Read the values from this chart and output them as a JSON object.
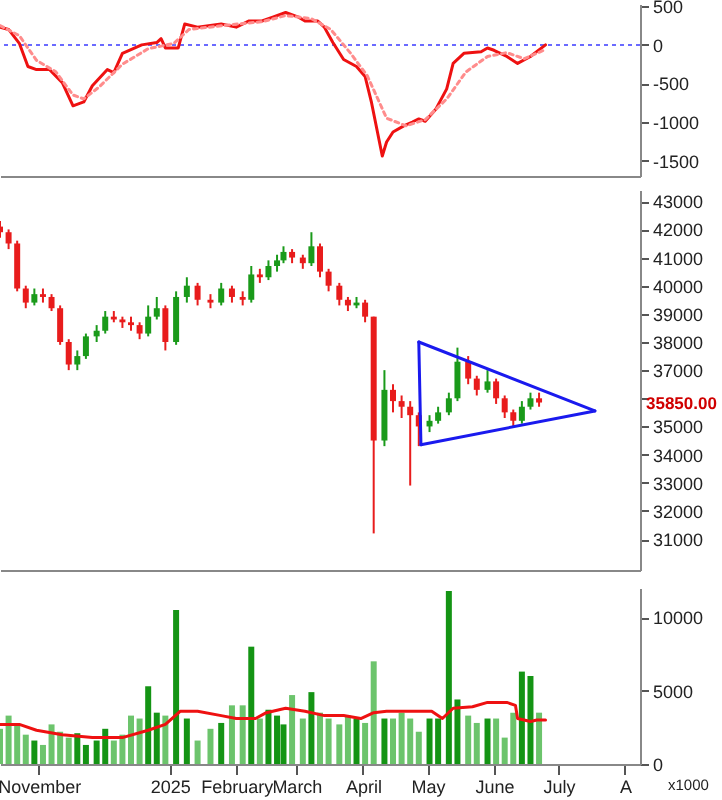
{
  "chart_data": [
    {
      "type": "line",
      "xlim": [
        "2024-10-14",
        "2025-08-08"
      ],
      "ylim": [
        -1700,
        530
      ],
      "yticks": [
        500,
        0,
        -500,
        -1000,
        -1500
      ],
      "tick_labels": "y",
      "series": [
        {
          "color": "#ee1111",
          "x": [
            "2024-10-14",
            "2024-10-18",
            "2024-10-23",
            "2024-10-27",
            "2024-10-31",
            "2024-11-06",
            "2024-11-12",
            "2024-11-17",
            "2024-11-22",
            "2024-11-26",
            "2024-12-03",
            "2024-12-06",
            "2024-12-10",
            "2024-12-19",
            "2024-12-26",
            "2024-12-28",
            "2024-12-30",
            "2025-01-05",
            "2025-01-08",
            "2025-01-14",
            "2025-01-25",
            "2025-02-01",
            "2025-02-07",
            "2025-02-13",
            "2025-02-18",
            "2025-02-24",
            "2025-03-02",
            "2025-03-05",
            "2025-03-11",
            "2025-03-14",
            "2025-03-18",
            "2025-03-23",
            "2025-03-29",
            "2025-04-02",
            "2025-04-05",
            "2025-04-10",
            "2025-04-12",
            "2025-04-15",
            "2025-04-20",
            "2025-04-24",
            "2025-04-27",
            "2025-04-30",
            "2025-05-05",
            "2025-05-10",
            "2025-05-13",
            "2025-05-18",
            "2025-05-26",
            "2025-05-29",
            "2025-06-01",
            "2025-06-07",
            "2025-06-12",
            "2025-06-18",
            "2025-06-25"
          ],
          "values": [
            230,
            200,
            20,
            -280,
            -320,
            -320,
            -490,
            -790,
            -740,
            -530,
            -320,
            -360,
            -110,
            0,
            30,
            80,
            -40,
            -40,
            270,
            230,
            270,
            230,
            310,
            310,
            360,
            420,
            360,
            310,
            310,
            230,
            30,
            -190,
            -280,
            -410,
            -750,
            -1440,
            -1260,
            -1130,
            -1050,
            -1000,
            -960,
            -990,
            -830,
            -570,
            -240,
            -110,
            -90,
            -40,
            -70,
            -150,
            -240,
            -150,
            0
          ]
        },
        {
          "color": "#ff8c8c",
          "line_style": "dotted",
          "x": [
            "2024-10-14",
            "2024-10-23",
            "2024-10-31",
            "2024-11-09",
            "2024-11-17",
            "2024-11-22",
            "2024-11-29",
            "2024-12-10",
            "2024-12-22",
            "2025-01-03",
            "2025-01-10",
            "2025-01-29",
            "2025-02-13",
            "2025-02-24",
            "2025-03-08",
            "2025-03-17",
            "2025-03-26",
            "2025-04-03",
            "2025-04-12",
            "2025-04-21",
            "2025-04-30",
            "2025-05-10",
            "2025-05-19",
            "2025-05-29",
            "2025-06-07",
            "2025-06-15",
            "2025-06-25"
          ],
          "values": [
            250,
            120,
            -200,
            -350,
            -650,
            -700,
            -550,
            -250,
            -50,
            20,
            200,
            260,
            300,
            380,
            340,
            200,
            -100,
            -400,
            -950,
            -1050,
            -970,
            -700,
            -350,
            -150,
            -100,
            -180,
            -60
          ]
        }
      ],
      "ref_lines": [
        {
          "axis": "y",
          "value": 0,
          "color": "#6a6aff",
          "line_style": "dotted"
        }
      ]
    },
    {
      "type": "candlestick",
      "xlim": [
        "2024-10-14",
        "2025-08-08"
      ],
      "ylim": [
        29900,
        43400
      ],
      "yticks": [
        43000,
        42000,
        41000,
        40000,
        39000,
        38000,
        37000,
        {
          "value": 36000,
          "label": null
        },
        35000,
        34000,
        33000,
        32000,
        31000
      ],
      "tick_labels": "y",
      "series": [
        {
          "x": [
            "2024-10-14",
            "2024-10-18",
            "2024-10-22",
            "2024-10-26",
            "2024-10-30",
            "2024-11-03",
            "2024-11-07",
            "2024-11-11",
            "2024-11-15",
            "2024-11-19",
            "2024-11-23",
            "2024-11-28",
            "2024-12-02",
            "2024-12-06",
            "2024-12-10",
            "2024-12-14",
            "2024-12-18",
            "2024-12-22",
            "2024-12-26",
            "2024-12-30",
            "2025-01-04",
            "2025-01-09",
            "2025-01-14",
            "2025-01-20",
            "2025-01-25",
            "2025-01-30",
            "2025-02-04",
            "2025-02-08",
            "2025-02-12",
            "2025-02-16",
            "2025-02-20",
            "2025-02-23",
            "2025-02-27",
            "2025-03-04",
            "2025-03-08",
            "2025-03-12",
            "2025-03-16",
            "2025-03-21",
            "2025-03-25",
            "2025-03-29",
            "2025-04-02",
            "2025-04-06",
            "2025-04-11",
            "2025-04-15",
            "2025-04-19",
            "2025-04-23",
            "2025-04-27",
            "2025-05-02",
            "2025-05-06",
            "2025-05-11",
            "2025-05-15",
            "2025-05-20",
            "2025-05-24",
            "2025-05-29",
            "2025-06-02",
            "2025-06-06",
            "2025-06-10",
            "2025-06-14",
            "2025-06-18",
            "2025-06-22"
          ],
          "ohlc": [
            [
              42100,
              42300,
              41700,
              41900
            ],
            [
              41900,
              42000,
              41300,
              41500
            ],
            [
              41500,
              41600,
              39800,
              39900
            ],
            [
              39900,
              40000,
              39200,
              39400
            ],
            [
              39400,
              39900,
              39300,
              39700
            ],
            [
              39700,
              39900,
              39400,
              39600
            ],
            [
              39600,
              39700,
              39100,
              39200
            ],
            [
              39200,
              39300,
              37900,
              38000
            ],
            [
              38000,
              38100,
              37000,
              37200
            ],
            [
              37200,
              37700,
              37000,
              37500
            ],
            [
              37500,
              38300,
              37400,
              38200
            ],
            [
              38200,
              38600,
              38000,
              38400
            ],
            [
              38400,
              39100,
              38300,
              38900
            ],
            [
              38900,
              39100,
              38700,
              38800
            ],
            [
              38800,
              38900,
              38500,
              38700
            ],
            [
              38700,
              38900,
              38400,
              38600
            ],
            [
              38600,
              38700,
              38100,
              38300
            ],
            [
              38300,
              39300,
              38200,
              38900
            ],
            [
              38900,
              39600,
              38800,
              39200
            ],
            [
              39200,
              39300,
              37700,
              38000
            ],
            [
              38000,
              39800,
              37900,
              39600
            ],
            [
              39600,
              40300,
              39400,
              40000
            ],
            [
              40000,
              40100,
              39300,
              39500
            ],
            [
              39500,
              39700,
              39200,
              39400
            ],
            [
              39400,
              40100,
              39300,
              39900
            ],
            [
              39900,
              40000,
              39400,
              39600
            ],
            [
              39600,
              39800,
              39300,
              39500
            ],
            [
              39500,
              40700,
              39400,
              40400
            ],
            [
              40400,
              40600,
              40100,
              40300
            ],
            [
              40300,
              40900,
              40200,
              40700
            ],
            [
              40700,
              41100,
              40500,
              40900
            ],
            [
              40900,
              41400,
              40800,
              41200
            ],
            [
              41200,
              41300,
              40800,
              41000
            ],
            [
              41000,
              41100,
              40600,
              40800
            ],
            [
              40800,
              41900,
              40700,
              41400
            ],
            [
              41400,
              41500,
              40300,
              40500
            ],
            [
              40500,
              40600,
              39800,
              40000
            ],
            [
              40000,
              40100,
              39300,
              39500
            ],
            [
              39500,
              39600,
              39100,
              39300
            ],
            [
              39300,
              39600,
              39200,
              39400
            ],
            [
              39400,
              39500,
              38700,
              38900
            ],
            [
              38900,
              38900,
              31200,
              34500
            ],
            [
              34500,
              37000,
              34300,
              36300
            ],
            [
              36300,
              36500,
              35500,
              35900
            ],
            [
              35900,
              36100,
              35300,
              35700
            ],
            [
              35700,
              35900,
              32900,
              35400
            ],
            [
              35400,
              35500,
              34300,
              35000
            ],
            [
              35000,
              35400,
              34800,
              35200
            ],
            [
              35200,
              35700,
              35100,
              35500
            ],
            [
              35500,
              36200,
              35400,
              36000
            ],
            [
              36000,
              37800,
              35900,
              37300
            ],
            [
              37300,
              37500,
              36500,
              36700
            ],
            [
              36700,
              36800,
              36100,
              36300
            ],
            [
              36300,
              37000,
              36200,
              36600
            ],
            [
              36600,
              36700,
              35800,
              36000
            ],
            [
              36000,
              36100,
              35300,
              35500
            ],
            [
              35500,
              35600,
              35000,
              35200
            ],
            [
              35200,
              35900,
              35100,
              35700
            ],
            [
              35700,
              36200,
              35600,
              36000
            ],
            [
              36000,
              36200,
              35700,
              35850
            ]
          ],
          "colors": [
            "#e81c1c",
            "#e81c1c",
            "#e81c1c",
            "#e81c1c",
            "#1a9a1a",
            "#e81c1c",
            "#e81c1c",
            "#e81c1c",
            "#e81c1c",
            "#1a9a1a",
            "#1a9a1a",
            "#1a9a1a",
            "#1a9a1a",
            "#e81c1c",
            "#e81c1c",
            "#e81c1c",
            "#e81c1c",
            "#1a9a1a",
            "#1a9a1a",
            "#e81c1c",
            "#1a9a1a",
            "#1a9a1a",
            "#e81c1c",
            "#e81c1c",
            "#1a9a1a",
            "#e81c1c",
            "#e81c1c",
            "#1a9a1a",
            "#e81c1c",
            "#1a9a1a",
            "#1a9a1a",
            "#1a9a1a",
            "#e81c1c",
            "#e81c1c",
            "#1a9a1a",
            "#e81c1c",
            "#e81c1c",
            "#e81c1c",
            "#e81c1c",
            "#1a9a1a",
            "#e81c1c",
            "#e81c1c",
            "#1a9a1a",
            "#e81c1c",
            "#e81c1c",
            "#e81c1c",
            "#e81c1c",
            "#1a9a1a",
            "#1a9a1a",
            "#1a9a1a",
            "#1a9a1a",
            "#e81c1c",
            "#e81c1c",
            "#1a9a1a",
            "#e81c1c",
            "#e81c1c",
            "#e81c1c",
            "#1a9a1a",
            "#1a9a1a",
            "#e81c1c"
          ]
        },
        {
          "type": "line",
          "color": "#1a1aee",
          "x": [
            "2025-04-27",
            "2025-07-18"
          ],
          "values": [
            38000,
            35550
          ]
        },
        {
          "type": "line",
          "color": "#1a1aee",
          "x": [
            "2025-04-28",
            "2025-07-18"
          ],
          "values": [
            34350,
            35550
          ]
        },
        {
          "type": "line",
          "color": "#1a1aee",
          "x": [
            "2025-04-27",
            "2025-04-28"
          ],
          "values": [
            38000,
            34350
          ]
        }
      ],
      "annotations": [
        "35850.00"
      ]
    },
    {
      "type": "bar",
      "xlim": [
        "2024-10-14",
        "2025-08-08"
      ],
      "ylim": [
        0,
        12000
      ],
      "yticks": [
        10000,
        5000,
        0
      ],
      "xticks": [
        {
          "value": "2024-11-01",
          "label": "November"
        },
        {
          "value": "2025-01-01",
          "label": "2025"
        },
        {
          "value": "2025-02-01",
          "label": "February"
        },
        {
          "value": "2025-03-01",
          "label": "March"
        },
        {
          "value": "2025-04-01",
          "label": "April"
        },
        {
          "value": "2025-05-01",
          "label": "May"
        },
        {
          "value": "2025-06-01",
          "label": "June"
        },
        {
          "value": "2025-07-01",
          "label": "July"
        },
        {
          "value": "2025-08-01",
          "label": "A"
        }
      ],
      "series": [
        {
          "x": [
            "2024-10-14",
            "2024-10-18",
            "2024-10-22",
            "2024-10-26",
            "2024-10-30",
            "2024-11-03",
            "2024-11-07",
            "2024-11-11",
            "2024-11-15",
            "2024-11-19",
            "2024-11-23",
            "2024-11-28",
            "2024-12-02",
            "2024-12-06",
            "2024-12-10",
            "2024-12-14",
            "2024-12-18",
            "2024-12-22",
            "2024-12-26",
            "2024-12-30",
            "2025-01-04",
            "2025-01-09",
            "2025-01-14",
            "2025-01-20",
            "2025-01-25",
            "2025-01-30",
            "2025-02-04",
            "2025-02-08",
            "2025-02-12",
            "2025-02-16",
            "2025-02-20",
            "2025-02-23",
            "2025-02-27",
            "2025-03-04",
            "2025-03-08",
            "2025-03-12",
            "2025-03-16",
            "2025-03-21",
            "2025-03-25",
            "2025-03-29",
            "2025-04-02",
            "2025-04-06",
            "2025-04-11",
            "2025-04-15",
            "2025-04-19",
            "2025-04-23",
            "2025-04-27",
            "2025-05-02",
            "2025-05-06",
            "2025-05-11",
            "2025-05-15",
            "2025-05-20",
            "2025-05-24",
            "2025-05-29",
            "2025-06-02",
            "2025-06-06",
            "2025-06-10",
            "2025-06-14",
            "2025-06-18",
            "2025-06-22"
          ],
          "values": [
            2400,
            3300,
            2700,
            2000,
            1600,
            1300,
            2700,
            2200,
            1800,
            2100,
            1300,
            1600,
            2400,
            1600,
            2000,
            3300,
            3100,
            5300,
            3500,
            3300,
            10500,
            3100,
            1600,
            2400,
            2800,
            4000,
            4000,
            8000,
            3100,
            3700,
            3300,
            2700,
            4700,
            3100,
            4900,
            3500,
            3100,
            2700,
            3300,
            3100,
            2800,
            7000,
            3100,
            3100,
            3500,
            3100,
            2200,
            3100,
            3100,
            11800,
            4400,
            3300,
            2800,
            3100,
            3100,
            1800,
            3500,
            6300,
            6000,
            3500
          ],
          "colors": [
            "#6cc46c",
            "#6cc46c",
            "#6cc46c",
            "#6cc46c",
            "#149414",
            "#6cc46c",
            "#6cc46c",
            "#6cc46c",
            "#6cc46c",
            "#149414",
            "#149414",
            "#149414",
            "#149414",
            "#6cc46c",
            "#6cc46c",
            "#6cc46c",
            "#6cc46c",
            "#149414",
            "#149414",
            "#6cc46c",
            "#149414",
            "#149414",
            "#6cc46c",
            "#6cc46c",
            "#149414",
            "#6cc46c",
            "#6cc46c",
            "#149414",
            "#6cc46c",
            "#149414",
            "#149414",
            "#149414",
            "#6cc46c",
            "#6cc46c",
            "#149414",
            "#6cc46c",
            "#6cc46c",
            "#6cc46c",
            "#6cc46c",
            "#149414",
            "#6cc46c",
            "#6cc46c",
            "#149414",
            "#6cc46c",
            "#6cc46c",
            "#6cc46c",
            "#6cc46c",
            "#149414",
            "#149414",
            "#149414",
            "#149414",
            "#6cc46c",
            "#6cc46c",
            "#149414",
            "#6cc46c",
            "#6cc46c",
            "#6cc46c",
            "#149414",
            "#149414",
            "#6cc46c"
          ]
        },
        {
          "type": "line",
          "color": "#ee1111",
          "x": [
            "2024-10-14",
            "2024-10-23",
            "2024-10-31",
            "2024-11-12",
            "2024-11-26",
            "2024-12-10",
            "2024-12-22",
            "2024-12-30",
            "2025-01-06",
            "2025-01-14",
            "2025-01-25",
            "2025-02-01",
            "2025-02-10",
            "2025-02-15",
            "2025-02-24",
            "2025-03-05",
            "2025-03-14",
            "2025-03-23",
            "2025-03-31",
            "2025-04-06",
            "2025-04-12",
            "2025-04-21",
            "2025-05-03",
            "2025-05-08",
            "2025-05-13",
            "2025-05-22",
            "2025-05-29",
            "2025-06-07",
            "2025-06-11",
            "2025-06-12",
            "2025-06-18",
            "2025-06-21",
            "2025-06-25"
          ],
          "values": [
            2700,
            2700,
            2300,
            2000,
            1800,
            1800,
            2300,
            2700,
            3600,
            3600,
            3300,
            3100,
            3100,
            3500,
            3800,
            3600,
            3300,
            3300,
            3100,
            3500,
            3600,
            3600,
            3600,
            3100,
            3800,
            3900,
            4200,
            4200,
            4000,
            3100,
            2900,
            3000,
            3000
          ]
        }
      ],
      "annotations": [
        "x1000"
      ]
    }
  ]
}
